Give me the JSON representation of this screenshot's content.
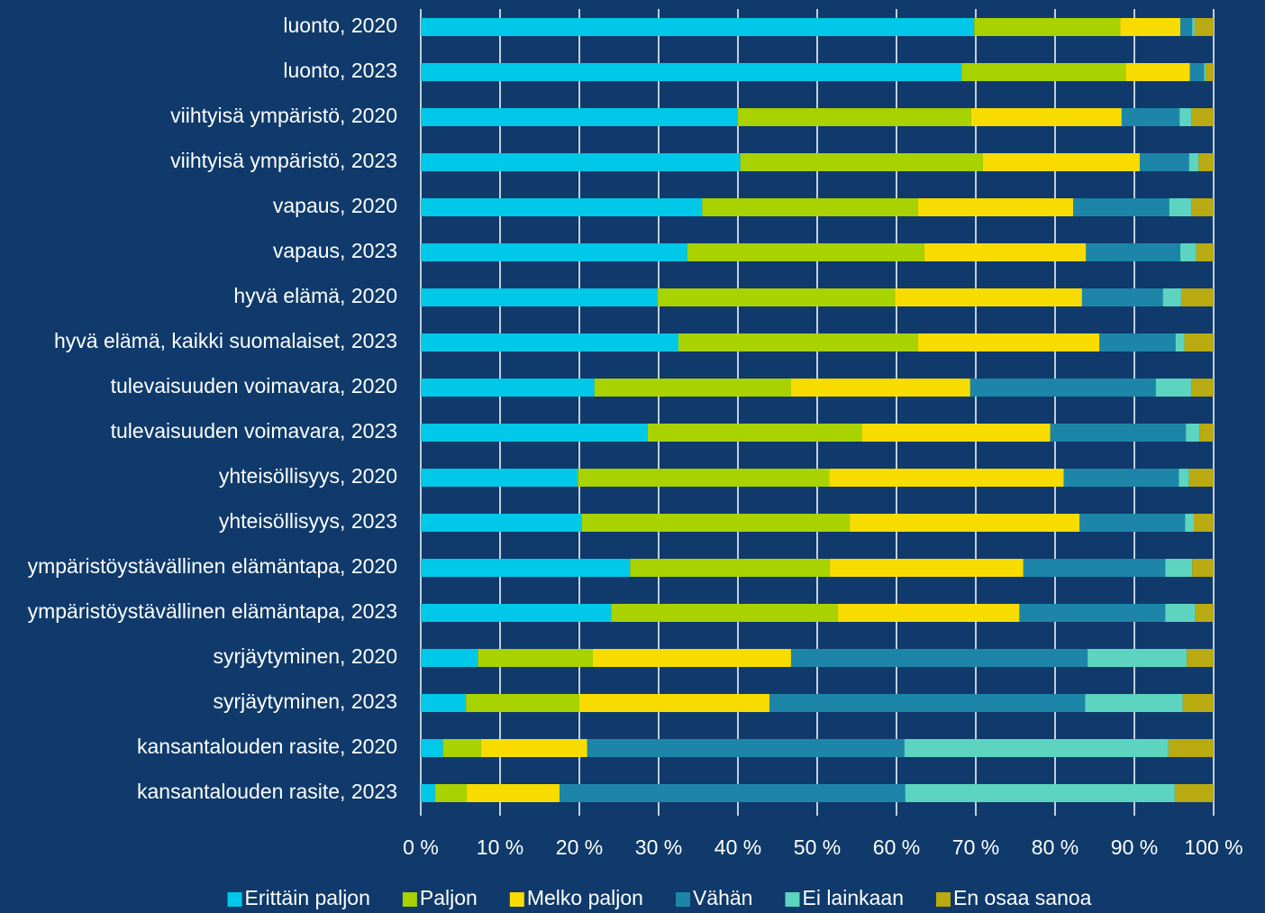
{
  "chart_data": {
    "type": "stacked-bar-horizontal",
    "categories": [
      "luonto, 2020",
      "luonto, 2023",
      "viihtyisä ympäristö, 2020",
      "viihtyisä ympäristö, 2023",
      "vapaus, 2020",
      "vapaus, 2023",
      "hyvä elämä, 2020",
      "hyvä elämä, kaikki suomalaiset, 2023",
      "tulevaisuuden voimavara, 2020",
      "tulevaisuuden voimavara, 2023",
      "yhteisöllisyys, 2020",
      "yhteisöllisyys, 2023",
      "ympäristöystävällinen elämäntapa, 2020",
      "ympäristöystävällinen elämäntapa, 2023",
      "syrjäytyminen, 2020",
      "syrjäytyminen, 2023",
      "kansantalouden rasite, 2020",
      "kansantalouden rasite, 2023"
    ],
    "series": [
      {
        "name": "Erittäin paljon",
        "color": "#00c8e8",
        "values": [
          69.8,
          68.2,
          40.0,
          40.3,
          35.5,
          33.6,
          29.9,
          32.5,
          21.9,
          28.6,
          19.8,
          20.3,
          26.4,
          24.0,
          7.2,
          5.7,
          2.8,
          1.8
        ]
      },
      {
        "name": "Paljon",
        "color": "#a8d200",
        "values": [
          18.4,
          20.7,
          29.4,
          30.6,
          27.2,
          29.9,
          29.9,
          30.2,
          24.8,
          27.0,
          31.7,
          33.8,
          25.2,
          28.6,
          14.5,
          14.3,
          4.8,
          4.0
        ]
      },
      {
        "name": "Melko paljon",
        "color": "#f8dc00",
        "values": [
          7.6,
          8.1,
          19.0,
          19.8,
          19.6,
          20.4,
          23.6,
          22.9,
          22.6,
          23.8,
          29.6,
          29.0,
          24.4,
          22.9,
          25.0,
          24.0,
          13.4,
          11.7
        ]
      },
      {
        "name": "Vähän",
        "color": "#1d86a8",
        "values": [
          1.5,
          1.8,
          7.3,
          6.2,
          12.1,
          11.9,
          10.2,
          9.6,
          23.4,
          17.1,
          14.5,
          13.3,
          17.9,
          18.4,
          37.4,
          39.8,
          40.0,
          43.6
        ]
      },
      {
        "name": "Ei lainkaan",
        "color": "#5dd4c0",
        "values": [
          0.3,
          0.2,
          1.5,
          1.2,
          2.8,
          2.0,
          2.3,
          1.1,
          4.5,
          1.7,
          1.3,
          1.1,
          3.4,
          3.8,
          12.5,
          12.3,
          33.3,
          34.0
        ]
      },
      {
        "name": "En osaa sanoa",
        "color": "#b8aa10",
        "values": [
          2.4,
          1.0,
          2.8,
          1.9,
          2.8,
          2.2,
          4.1,
          3.7,
          2.8,
          1.8,
          3.1,
          2.5,
          2.7,
          2.3,
          3.4,
          3.9,
          5.7,
          4.9
        ]
      }
    ],
    "xlim": [
      0,
      100
    ],
    "xticks": [
      {
        "value": 0,
        "label": "0 %"
      },
      {
        "value": 10,
        "label": "10 %"
      },
      {
        "value": 20,
        "label": "20 %"
      },
      {
        "value": 30,
        "label": "30 %"
      },
      {
        "value": 40,
        "label": "40 %"
      },
      {
        "value": 50,
        "label": "50 %"
      },
      {
        "value": 60,
        "label": "60 %"
      },
      {
        "value": 70,
        "label": "70 %"
      },
      {
        "value": 80,
        "label": "80 %"
      },
      {
        "value": 90,
        "label": "90 %"
      },
      {
        "value": 100,
        "label": "100 %"
      }
    ],
    "grid": true,
    "legend": "bottom"
  }
}
